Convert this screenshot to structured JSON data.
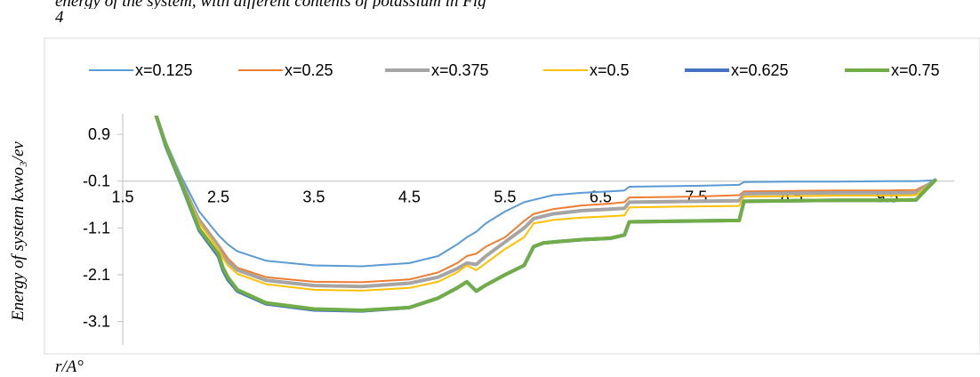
{
  "header_text": {
    "line1": "energy of the system, with different contents of potassium in Fig",
    "line2": "4"
  },
  "x_unit_label": "r/A°",
  "chart_data": {
    "type": "line",
    "title": "",
    "xlabel": "r/A°",
    "ylabel": "Energy of system kxwo₃/ev",
    "xlim": [
      1.5,
      10.2
    ],
    "ylim": [
      -3.6,
      1.3
    ],
    "x_axis_crosses_at": -0.1,
    "x_ticks": [
      "1.5",
      "2.5",
      "3.5",
      "4.5",
      "5.5",
      "6.5",
      "7.5",
      "8.5",
      "9.5"
    ],
    "y_ticks": [
      "0.9",
      "-0.1",
      "-1.1",
      "-2.1",
      "-3.1"
    ],
    "legend_position": "top",
    "grid": false,
    "x": [
      1.85,
      1.95,
      2.1,
      2.3,
      2.5,
      2.55,
      2.6,
      2.7,
      3.0,
      3.5,
      4.0,
      4.5,
      4.8,
      5.0,
      5.1,
      5.2,
      5.3,
      5.5,
      5.7,
      5.8,
      5.9,
      6.0,
      6.3,
      6.6,
      6.75,
      6.8,
      7.5,
      7.95,
      8.0,
      8.5,
      9.0,
      9.5,
      9.8,
      10.0
    ],
    "series": [
      {
        "name": "x=0.125",
        "color": "#5B9BD5",
        "width": 2,
        "values": [
          1.3,
          0.75,
          0.05,
          -0.75,
          -1.25,
          -1.35,
          -1.45,
          -1.6,
          -1.8,
          -1.9,
          -1.92,
          -1.85,
          -1.7,
          -1.45,
          -1.3,
          -1.18,
          -1.0,
          -0.75,
          -0.55,
          -0.5,
          -0.45,
          -0.4,
          -0.35,
          -0.32,
          -0.3,
          -0.22,
          -0.2,
          -0.18,
          -0.12,
          -0.11,
          -0.11,
          -0.1,
          -0.1,
          -0.08
        ]
      },
      {
        "name": "x=0.25",
        "color": "#ED7D31",
        "width": 2,
        "values": [
          1.3,
          0.7,
          -0.05,
          -0.9,
          -1.45,
          -1.6,
          -1.75,
          -1.95,
          -2.15,
          -2.25,
          -2.26,
          -2.2,
          -2.05,
          -1.85,
          -1.7,
          -1.65,
          -1.5,
          -1.3,
          -0.95,
          -0.8,
          -0.75,
          -0.7,
          -0.62,
          -0.58,
          -0.55,
          -0.45,
          -0.43,
          -0.4,
          -0.32,
          -0.31,
          -0.3,
          -0.3,
          -0.29,
          -0.08
        ]
      },
      {
        "name": "x=0.375",
        "color": "#A5A5A5",
        "width": 4,
        "values": [
          1.3,
          0.7,
          -0.05,
          -0.95,
          -1.5,
          -1.7,
          -1.82,
          -2.0,
          -2.22,
          -2.33,
          -2.35,
          -2.28,
          -2.15,
          -1.97,
          -1.85,
          -1.88,
          -1.7,
          -1.4,
          -1.1,
          -0.9,
          -0.85,
          -0.8,
          -0.73,
          -0.7,
          -0.68,
          -0.55,
          -0.53,
          -0.52,
          -0.37,
          -0.36,
          -0.35,
          -0.35,
          -0.35,
          -0.08
        ]
      },
      {
        "name": "x=0.5",
        "color": "#FFC000",
        "width": 2,
        "values": [
          1.3,
          0.7,
          -0.05,
          -1.0,
          -1.55,
          -1.75,
          -1.9,
          -2.08,
          -2.3,
          -2.42,
          -2.44,
          -2.38,
          -2.25,
          -2.05,
          -1.9,
          -2.0,
          -1.85,
          -1.55,
          -1.3,
          -1.0,
          -0.97,
          -0.93,
          -0.88,
          -0.85,
          -0.83,
          -0.66,
          -0.64,
          -0.63,
          -0.43,
          -0.42,
          -0.41,
          -0.41,
          -0.4,
          -0.08
        ]
      },
      {
        "name": "x=0.625",
        "color": "#4472C4",
        "width": 4,
        "values": [
          1.3,
          0.65,
          -0.1,
          -1.15,
          -1.7,
          -2.0,
          -2.2,
          -2.45,
          -2.72,
          -2.85,
          -2.87,
          -2.8,
          -2.6,
          -2.38,
          -2.25,
          -2.45,
          -2.32,
          -2.1,
          -1.9,
          -1.5,
          -1.42,
          -1.4,
          -1.35,
          -1.32,
          -1.25,
          -0.97,
          -0.95,
          -0.94,
          -0.53,
          -0.52,
          -0.51,
          -0.51,
          -0.5,
          -0.08
        ]
      },
      {
        "name": "x=0.75",
        "color": "#70AD47",
        "width": 4,
        "values": [
          1.3,
          0.68,
          -0.08,
          -1.12,
          -1.65,
          -1.95,
          -2.15,
          -2.42,
          -2.7,
          -2.83,
          -2.86,
          -2.8,
          -2.6,
          -2.38,
          -2.25,
          -2.45,
          -2.32,
          -2.1,
          -1.9,
          -1.5,
          -1.42,
          -1.4,
          -1.35,
          -1.32,
          -1.25,
          -0.97,
          -0.95,
          -0.94,
          -0.53,
          -0.52,
          -0.51,
          -0.51,
          -0.5,
          -0.08
        ]
      }
    ]
  }
}
